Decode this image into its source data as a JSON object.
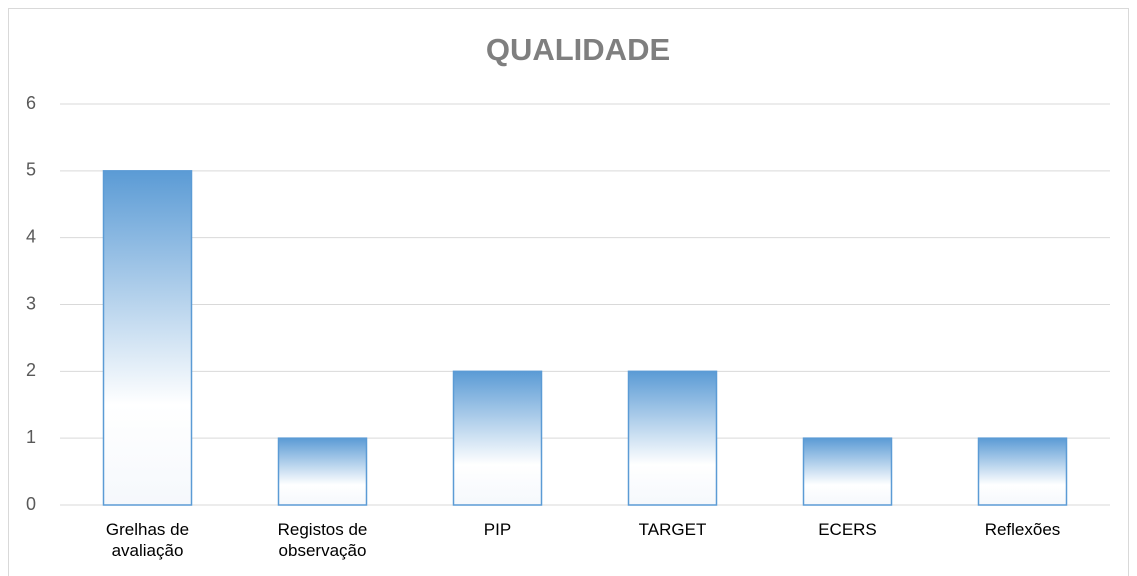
{
  "chart_data": {
    "type": "bar",
    "title": "QUALIDADE",
    "categories": [
      "Grelhas de avaliação",
      "Registos de observação",
      "PIP",
      "TARGET",
      "ECERS",
      "Reflexões"
    ],
    "values": [
      5,
      1,
      2,
      2,
      1,
      1
    ],
    "color": "#5b9bd5",
    "ylim": [
      0,
      6
    ],
    "yticks": [
      0,
      1,
      2,
      3,
      4,
      5,
      6
    ],
    "grid": true
  }
}
